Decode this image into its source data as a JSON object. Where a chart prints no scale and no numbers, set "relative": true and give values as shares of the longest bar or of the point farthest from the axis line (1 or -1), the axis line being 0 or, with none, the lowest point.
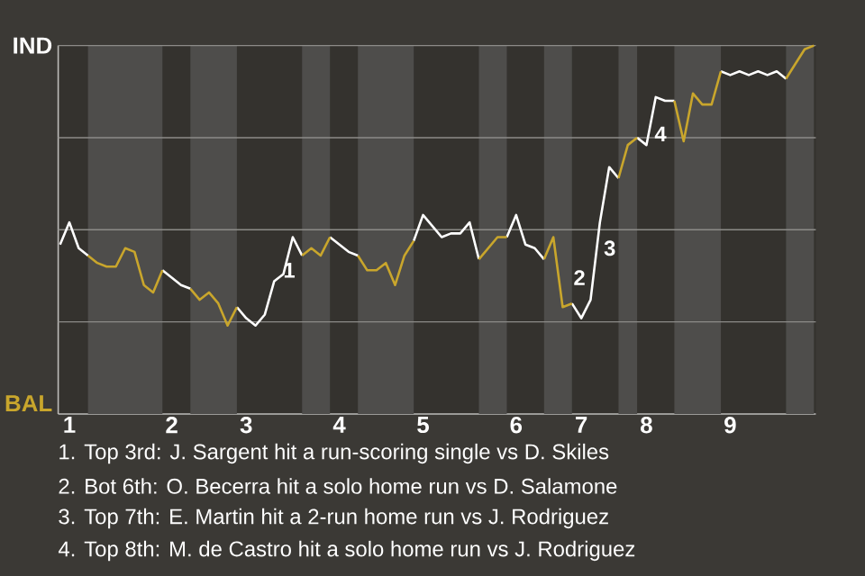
{
  "chart_data": {
    "type": "line",
    "relative": true,
    "categories": [
      null,
      "1",
      null,
      null,
      null,
      null,
      null,
      null,
      null,
      null,
      null,
      null,
      "2",
      null,
      null,
      null,
      null,
      null,
      null,
      null,
      "3",
      null,
      null,
      null,
      null,
      null,
      null,
      null,
      null,
      null,
      "4",
      null,
      null,
      null,
      null,
      null,
      null,
      null,
      null,
      "5",
      null,
      null,
      null,
      null,
      null,
      null,
      null,
      null,
      null,
      "6",
      null,
      null,
      null,
      null,
      null,
      null,
      "7",
      null,
      null,
      null,
      null,
      null,
      null,
      "8",
      null,
      null,
      null,
      null,
      null,
      null,
      null,
      null,
      "9",
      null,
      null,
      null,
      null,
      null,
      null,
      null,
      null,
      null
    ],
    "ref_lines": [
      {
        "axis": "y",
        "value": 0.25,
        "color": "#8c8b88"
      },
      {
        "axis": "y",
        "value": 0.5,
        "color": "#8c8b88"
      },
      {
        "axis": "y",
        "value": 0.75,
        "color": "#8c8b88"
      },
      {
        "axis": "y",
        "value": 1,
        "color": "#8c8b88"
      }
    ],
    "series": [
      {
        "color": "#ffffff",
        "values": [
          0.46,
          0.52,
          0.45,
          0.43,
          null,
          null,
          null,
          null,
          null,
          null,
          null,
          0.39,
          0.37,
          0.35,
          0.34,
          null,
          null,
          null,
          null,
          0.29,
          0.26,
          0.24,
          0.27,
          0.36,
          0.38,
          0.48,
          0.43,
          null,
          null,
          0.48,
          0.46,
          0.44,
          0.43,
          null,
          null,
          null,
          null,
          null,
          0.47,
          0.54,
          0.51,
          0.48,
          0.49,
          0.49,
          0.52,
          0.42,
          null,
          null,
          0.48,
          0.54,
          0.46,
          0.45,
          0.42,
          null,
          null,
          0.3,
          0.26,
          0.31,
          0.52,
          0.67,
          0.64,
          null,
          0.75,
          0.73,
          0.86,
          0.85,
          0.85,
          null,
          null,
          null,
          null,
          0.93,
          0.92,
          0.93,
          0.92,
          0.93,
          0.92,
          0.93,
          0.91,
          null,
          null,
          null
        ]
      },
      {
        "color": "#c9a62c",
        "values": [
          null,
          null,
          null,
          0.43,
          0.41,
          0.4,
          0.4,
          0.45,
          0.44,
          0.35,
          0.33,
          0.39,
          null,
          null,
          0.34,
          0.31,
          0.33,
          0.3,
          0.24,
          0.29,
          null,
          null,
          null,
          null,
          null,
          null,
          0.43,
          0.45,
          0.43,
          0.48,
          null,
          null,
          0.43,
          0.39,
          0.39,
          0.41,
          0.35,
          0.43,
          0.47,
          null,
          null,
          null,
          null,
          null,
          null,
          0.42,
          0.45,
          0.48,
          0.48,
          null,
          null,
          null,
          0.42,
          0.48,
          0.29,
          0.3,
          null,
          null,
          null,
          null,
          0.64,
          0.73,
          0.75,
          null,
          null,
          null,
          0.85,
          0.74,
          0.87,
          0.84,
          0.84,
          0.93,
          null,
          null,
          null,
          null,
          null,
          null,
          0.91,
          0.95,
          0.99,
          1.0
        ]
      }
    ],
    "annotations": [
      "IND",
      "BAL",
      "1",
      "2",
      "3",
      "4",
      "1. Top 3rd: J. Sargent hit a run-scoring single vs D. Skiles",
      "2. Bot 6th: O. Becerra hit a solo home run vs D. Salamone",
      "3. Top 7th: E. Martin hit a 2-run home run vs J. Rodriguez",
      "4. Top 8th: M. de Castro hit a solo home run vs J. Rodriguez"
    ]
  }
}
